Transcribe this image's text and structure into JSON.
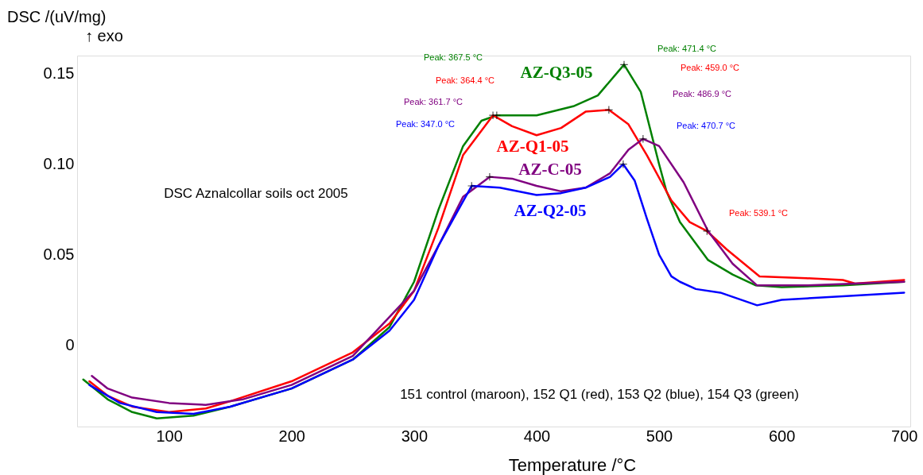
{
  "chart_data": {
    "type": "line",
    "xlabel": "Temperature /°C",
    "ylabel": "DSC /(uV/mg)\n↑ exo",
    "xlim": [
      25,
      705
    ],
    "ylim": [
      -0.045,
      0.16
    ],
    "xticks": [
      100,
      200,
      300,
      400,
      500,
      600,
      700
    ],
    "yticks": [
      0,
      {
        "value": 0.05,
        "label": "0.05"
      },
      {
        "value": 0.1,
        "label": "0.10"
      },
      0.15
    ],
    "grid": false,
    "marker": "none",
    "line_style": "solid",
    "series": [
      {
        "name": "AZ-Q3-05",
        "color": "#008000",
        "x": [
          30,
          50,
          70,
          90,
          120,
          150,
          200,
          250,
          280,
          300,
          320,
          340,
          355,
          367.5,
          400,
          430,
          450,
          471.4,
          485,
          500,
          506,
          517,
          540,
          560,
          579,
          600,
          650,
          700
        ],
        "values": [
          -0.019,
          -0.03,
          -0.037,
          -0.0405,
          -0.039,
          -0.034,
          -0.024,
          -0.008,
          0.01,
          0.035,
          0.075,
          0.11,
          0.124,
          0.127,
          0.127,
          0.132,
          0.138,
          0.155,
          0.14,
          0.1,
          0.085,
          0.068,
          0.047,
          0.039,
          0.033,
          0.032,
          0.033,
          0.035
        ]
      },
      {
        "name": "AZ-Q1-05",
        "color": "#ff0000",
        "x": [
          35,
          50,
          70,
          100,
          130,
          150,
          200,
          250,
          280,
          300,
          320,
          340,
          364.4,
          380,
          400,
          420,
          440,
          459.0,
          475,
          490,
          510,
          525,
          539.1,
          555,
          582,
          620,
          650,
          660,
          700
        ],
        "values": [
          -0.02,
          -0.028,
          -0.034,
          -0.037,
          -0.035,
          -0.031,
          -0.02,
          -0.004,
          0.012,
          0.03,
          0.065,
          0.105,
          0.127,
          0.121,
          0.116,
          0.12,
          0.129,
          0.13,
          0.122,
          0.105,
          0.08,
          0.068,
          0.063,
          0.053,
          0.038,
          0.037,
          0.036,
          0.034,
          0.036
        ]
      },
      {
        "name": "AZ-C-05",
        "color": "#800080",
        "x": [
          37,
          50,
          70,
          100,
          130,
          160,
          200,
          250,
          300,
          320,
          340,
          361.7,
          380,
          400,
          420,
          440,
          460,
          475,
          486.9,
          500,
          520,
          540,
          560,
          580,
          620,
          660,
          700
        ],
        "values": [
          -0.017,
          -0.024,
          -0.029,
          -0.032,
          -0.033,
          -0.03,
          -0.022,
          -0.006,
          0.03,
          0.055,
          0.082,
          0.093,
          0.092,
          0.088,
          0.085,
          0.087,
          0.095,
          0.108,
          0.114,
          0.11,
          0.09,
          0.063,
          0.045,
          0.033,
          0.033,
          0.034,
          0.035
        ]
      },
      {
        "name": "AZ-Q2-05",
        "color": "#0000ff",
        "x": [
          35,
          60,
          90,
          120,
          150,
          200,
          250,
          280,
          300,
          320,
          347.0,
          370,
          400,
          420,
          440,
          460,
          470.7,
          480,
          490,
          500,
          510,
          517,
          530,
          550,
          580,
          600,
          650,
          700
        ],
        "values": [
          -0.022,
          -0.032,
          -0.037,
          -0.038,
          -0.034,
          -0.024,
          -0.008,
          0.008,
          0.025,
          0.055,
          0.088,
          0.087,
          0.083,
          0.084,
          0.087,
          0.093,
          0.1,
          0.091,
          0.07,
          0.05,
          0.038,
          0.035,
          0.031,
          0.029,
          0.022,
          0.025,
          0.027,
          0.029
        ]
      },
      {
        "type": "scatter",
        "marker": "cross",
        "color": "#000000",
        "x": [
          367.5,
          364.4,
          361.7,
          347.0,
          471.4,
          459.0,
          486.9,
          470.7,
          539.1
        ],
        "values": [
          0.127,
          0.127,
          0.093,
          0.088,
          0.155,
          0.13,
          0.114,
          0.1,
          0.063
        ]
      }
    ],
    "annotations": [
      "Peak: 367.5 °C",
      "Peak: 364.4 °C",
      "Peak: 361.7 °C",
      "Peak: 347.0 °C",
      "Peak: 471.4 °C",
      "Peak: 459.0 °C",
      "Peak: 486.9 °C",
      "Peak: 470.7 °C",
      "Peak: 539.1 °C",
      "DSC Aznalcollar soils oct 2005",
      "151 control (maroon), 152 Q1 (red), 153 Q2 (blue), 154 Q3 (green)"
    ]
  }
}
